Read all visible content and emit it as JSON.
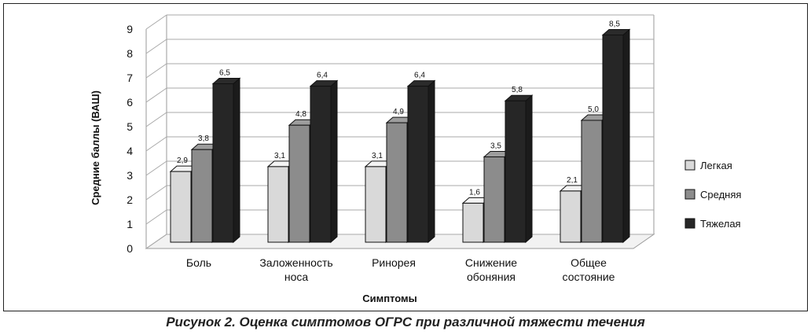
{
  "chart_data": {
    "type": "bar",
    "title": "",
    "xlabel": "Симптомы",
    "ylabel": "Средние баллы (ВАШ)",
    "ylim": [
      0,
      9
    ],
    "yticks": [
      "0",
      "1",
      "2",
      "3",
      "4",
      "5",
      "6",
      "7",
      "8",
      "9"
    ],
    "grid": true,
    "legend_position": "right",
    "categories": [
      [
        "Боль"
      ],
      [
        "Заложенность",
        "носа"
      ],
      [
        "Ринорея"
      ],
      [
        "Снижение",
        "обоняния"
      ],
      [
        "Общее",
        "состояние"
      ]
    ],
    "series": [
      {
        "name": "Легкая",
        "color": "#d9d9d9",
        "values": [
          2.9,
          3.1,
          3.1,
          1.6,
          2.1
        ],
        "labels": [
          "2,9",
          "3,1",
          "3,1",
          "1,6",
          "2,1"
        ]
      },
      {
        "name": "Средняя",
        "color": "#8c8c8c",
        "values": [
          3.8,
          4.8,
          4.9,
          3.5,
          5.0
        ],
        "labels": [
          "3,8",
          "4,8",
          "4,9",
          "3,5",
          "5,0"
        ]
      },
      {
        "name": "Тяжелая",
        "color": "#262626",
        "values": [
          6.5,
          6.4,
          6.4,
          5.8,
          8.5
        ],
        "labels": [
          "6,5",
          "6,4",
          "6,4",
          "5,8",
          "8,5"
        ]
      }
    ]
  },
  "caption": "Рисунок 2. Оценка симптомов ОГРС при различной тяжести течения"
}
